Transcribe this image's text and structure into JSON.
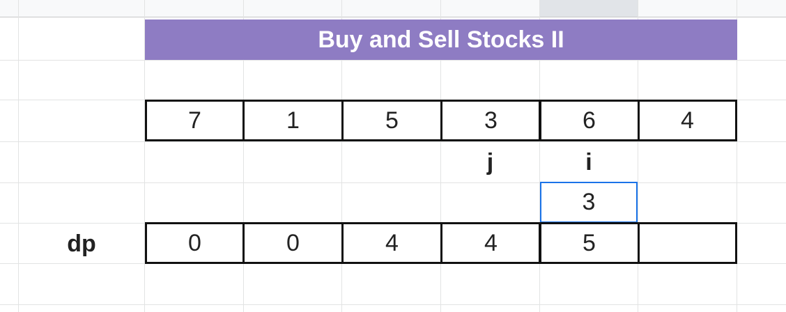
{
  "sheet": {
    "title": "Buy and Sell Stocks II",
    "prices": [
      "7",
      "1",
      "5",
      "3",
      "6",
      "4"
    ],
    "pointers": {
      "j_label": "j",
      "i_label": "i"
    },
    "active_cell_value": "3",
    "dp_label": "dp",
    "dp_values": [
      "0",
      "0",
      "4",
      "4",
      "5",
      ""
    ]
  },
  "colors": {
    "title_bg": "#8e7cc3",
    "active_border": "#1a73e8",
    "grid": "#e2e3e3"
  }
}
